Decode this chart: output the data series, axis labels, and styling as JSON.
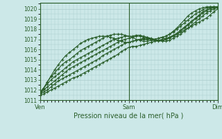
{
  "xlabel": "Pression niveau de la mer( hPa )",
  "xtick_labels": [
    "Ven",
    "Sam",
    "Dim"
  ],
  "xtick_pos": [
    0.0,
    0.5,
    1.0
  ],
  "ylim": [
    1011.0,
    1020.6
  ],
  "yticks": [
    1011,
    1012,
    1013,
    1014,
    1015,
    1016,
    1017,
    1018,
    1019,
    1020
  ],
  "bg_color": "#cce8e8",
  "grid_color": "#aacccc",
  "line_color": "#2a5e2a",
  "marker": "+",
  "markersize": 3.5,
  "linewidth": 0.8,
  "figsize": [
    3.2,
    2.0
  ],
  "dpi": 100,
  "n_points": 49,
  "series": [
    [
      1011.5,
      1011.6,
      1011.8,
      1012.0,
      1012.2,
      1012.4,
      1012.6,
      1012.8,
      1013.0,
      1013.2,
      1013.3,
      1013.5,
      1013.7,
      1013.9,
      1014.1,
      1014.3,
      1014.5,
      1014.7,
      1014.9,
      1015.1,
      1015.3,
      1015.5,
      1015.8,
      1016.0,
      1016.2,
      1016.3,
      1016.3,
      1016.4,
      1016.5,
      1016.6,
      1016.7,
      1016.8,
      1016.9,
      1017.0,
      1017.1,
      1017.2,
      1017.3,
      1017.5,
      1017.7,
      1017.9,
      1018.1,
      1018.3,
      1018.5,
      1018.7,
      1018.9,
      1019.1,
      1019.4,
      1019.7,
      1020.0
    ],
    [
      1011.6,
      1011.8,
      1012.0,
      1012.3,
      1012.6,
      1012.9,
      1013.1,
      1013.3,
      1013.5,
      1013.7,
      1013.9,
      1014.1,
      1014.3,
      1014.5,
      1014.7,
      1014.9,
      1015.1,
      1015.4,
      1015.6,
      1015.8,
      1016.0,
      1016.2,
      1016.4,
      1016.6,
      1016.7,
      1016.8,
      1016.9,
      1017.0,
      1017.1,
      1017.2,
      1017.1,
      1017.0,
      1016.9,
      1016.8,
      1016.8,
      1016.9,
      1017.1,
      1017.3,
      1017.5,
      1017.8,
      1018.1,
      1018.4,
      1018.7,
      1019.0,
      1019.3,
      1019.6,
      1019.8,
      1020.0,
      1020.1
    ],
    [
      1011.7,
      1012.0,
      1012.3,
      1012.6,
      1012.9,
      1013.2,
      1013.5,
      1013.8,
      1014.1,
      1014.3,
      1014.5,
      1014.7,
      1014.9,
      1015.1,
      1015.3,
      1015.5,
      1015.7,
      1015.9,
      1016.1,
      1016.3,
      1016.5,
      1016.7,
      1016.9,
      1017.0,
      1017.1,
      1017.2,
      1017.3,
      1017.3,
      1017.2,
      1017.1,
      1017.0,
      1016.9,
      1016.9,
      1016.9,
      1017.0,
      1017.1,
      1017.3,
      1017.5,
      1017.8,
      1018.1,
      1018.4,
      1018.7,
      1019.0,
      1019.3,
      1019.6,
      1019.8,
      1020.0,
      1020.1,
      1020.2
    ],
    [
      1011.8,
      1012.2,
      1012.6,
      1013.0,
      1013.3,
      1013.6,
      1013.9,
      1014.2,
      1014.5,
      1014.8,
      1015.0,
      1015.2,
      1015.4,
      1015.6,
      1015.8,
      1016.0,
      1016.2,
      1016.4,
      1016.6,
      1016.8,
      1017.0,
      1017.1,
      1017.2,
      1017.3,
      1017.3,
      1017.3,
      1017.4,
      1017.4,
      1017.3,
      1017.2,
      1017.0,
      1016.9,
      1016.8,
      1016.9,
      1017.0,
      1017.2,
      1017.4,
      1017.6,
      1017.9,
      1018.2,
      1018.5,
      1018.8,
      1019.1,
      1019.4,
      1019.7,
      1019.9,
      1020.1,
      1020.2,
      1020.2
    ],
    [
      1011.6,
      1012.2,
      1012.8,
      1013.3,
      1013.7,
      1014.1,
      1014.5,
      1014.8,
      1015.0,
      1015.3,
      1015.6,
      1015.9,
      1016.1,
      1016.3,
      1016.5,
      1016.7,
      1016.9,
      1017.1,
      1017.3,
      1017.4,
      1017.5,
      1017.5,
      1017.5,
      1017.4,
      1017.3,
      1017.2,
      1017.0,
      1016.9,
      1016.8,
      1016.8,
      1016.9,
      1017.0,
      1017.1,
      1017.2,
      1017.3,
      1017.5,
      1017.7,
      1018.0,
      1018.3,
      1018.6,
      1018.9,
      1019.2,
      1019.5,
      1019.7,
      1019.9,
      1020.1,
      1020.2,
      1020.2,
      1020.2
    ],
    [
      1011.5,
      1012.1,
      1012.8,
      1013.4,
      1014.0,
      1014.5,
      1015.0,
      1015.4,
      1015.7,
      1016.0,
      1016.3,
      1016.6,
      1016.8,
      1017.0,
      1017.1,
      1017.2,
      1017.3,
      1017.3,
      1017.3,
      1017.2,
      1017.1,
      1016.9,
      1016.8,
      1016.7,
      1016.7,
      1016.8,
      1016.9,
      1017.0,
      1017.0,
      1017.0,
      1017.0,
      1017.0,
      1017.1,
      1017.2,
      1017.3,
      1017.5,
      1017.8,
      1018.1,
      1018.5,
      1018.9,
      1019.3,
      1019.6,
      1019.8,
      1020.0,
      1020.1,
      1020.2,
      1020.2,
      1020.2,
      1020.2
    ]
  ]
}
